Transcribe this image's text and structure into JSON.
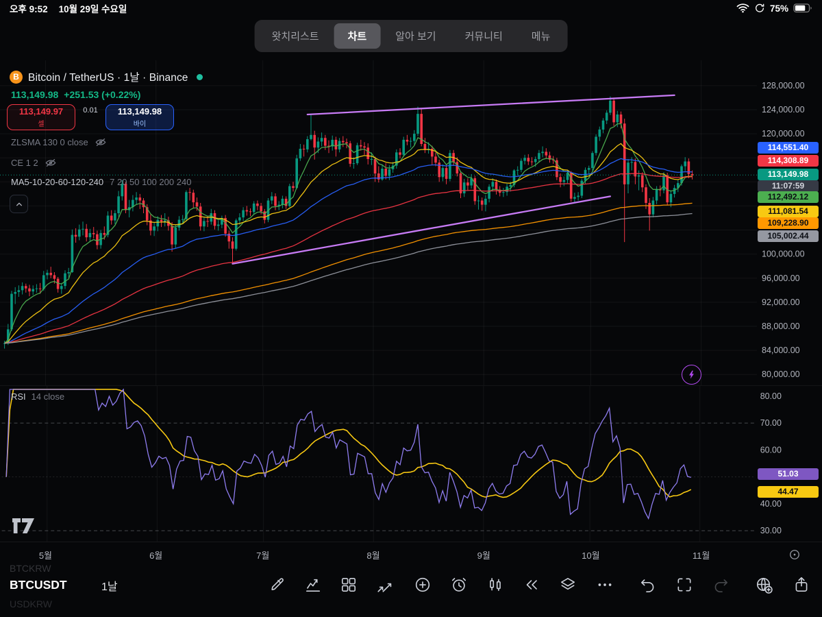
{
  "status": {
    "time": "오후 9:52",
    "date": "10월 29일 수요일",
    "battery": "75%"
  },
  "tabs": {
    "items": [
      {
        "key": "watchlist",
        "label": "왓치리스트",
        "active": false
      },
      {
        "key": "chart",
        "label": "차트",
        "active": true
      },
      {
        "key": "discover",
        "label": "알아 보기",
        "active": false
      },
      {
        "key": "community",
        "label": "커뮤니티",
        "active": false
      },
      {
        "key": "menu",
        "label": "메뉴",
        "active": false
      }
    ]
  },
  "header": {
    "symbol_icon_glyph": "B",
    "title_full": "Bitcoin / TetherUS · 1날 · Binance",
    "price": "113,149.98",
    "change": "+251.53 (+0.22%)",
    "sell": {
      "price": "113,149.97",
      "label": "셀"
    },
    "spread": "0.01",
    "buy": {
      "price": "113,149.98",
      "label": "바이"
    }
  },
  "indicators": {
    "zlsma": "ZLSMA 130 0 close",
    "ce": "CE 1 2",
    "ma_name": "MA5-10-20-60-120-240",
    "ma_params": "7 20 50 100 200 240",
    "rsi_name": "RSI",
    "rsi_params": "14 close"
  },
  "price_axis": {
    "ticks": [
      128000,
      124000,
      120000,
      100000,
      96000,
      92000,
      88000,
      84000,
      80000
    ],
    "badges": [
      {
        "text": "114,551.40",
        "bg": "#2962ff",
        "fg": "#ffffff"
      },
      {
        "text": "114,308.89",
        "bg": "#f23645",
        "fg": "#ffffff"
      },
      {
        "text": "113,149.98",
        "bg": "#089981",
        "fg": "#ffffff",
        "countdown": "11:07:59"
      },
      {
        "text": "112,492.12",
        "bg": "#4caf50",
        "fg": "#0b0e14"
      },
      {
        "text": "111,081.54",
        "bg": "#f8c912",
        "fg": "#0b0e14"
      },
      {
        "text": "109,228.90",
        "bg": "#ff9800",
        "fg": "#0b0e14"
      },
      {
        "text": "105,002.44",
        "bg": "#9598a1",
        "fg": "#0b0e14"
      }
    ]
  },
  "rsi_axis": {
    "ticks": [
      80,
      70,
      60,
      40,
      30
    ],
    "badges": [
      {
        "text": "51.03",
        "bg": "#7e57c2",
        "fg": "#ffffff"
      },
      {
        "text": "44.47",
        "bg": "#f8c912",
        "fg": "#0b0e14"
      }
    ]
  },
  "bottom": {
    "symbol_prev": "BTCKRW",
    "symbol": "BTCUSDT",
    "symbol_next": "USDKRW",
    "interval": "1날"
  },
  "toolbar": {
    "icons": [
      {
        "name": "draw"
      },
      {
        "name": "indicators"
      },
      {
        "name": "layouts"
      },
      {
        "name": "trendlines"
      },
      {
        "name": "add"
      },
      {
        "name": "alerts"
      },
      {
        "name": "chart-type"
      },
      {
        "name": "bar-replay"
      },
      {
        "name": "object-tree"
      },
      {
        "name": "more"
      },
      {
        "name": "undo"
      },
      {
        "name": "fullscreen"
      },
      {
        "name": "redo",
        "disabled": true
      },
      {
        "name": "publish"
      },
      {
        "name": "share"
      }
    ]
  },
  "chart_data": {
    "type": "candlestick",
    "symbol": "BTCUSDT",
    "exchange": "Binance",
    "interval": "1날",
    "last_price": 113149.98,
    "change_text": "+251.53 (+0.22%)",
    "values_unit": "thousand USDT",
    "y_axis": {
      "min": 80000,
      "max": 128000,
      "step": 4000
    },
    "months": [
      {
        "label": "5월",
        "idx": 12
      },
      {
        "label": "6월",
        "idx": 43
      },
      {
        "label": "7월",
        "idx": 73
      },
      {
        "label": "8월",
        "idx": 104
      },
      {
        "label": "9월",
        "idx": 135
      },
      {
        "label": "10월",
        "idx": 165
      },
      {
        "label": "11월",
        "idx": 196
      }
    ],
    "colors": {
      "up": "#089981",
      "down": "#f23645",
      "drawing": "#c77bf5",
      "accent": "#b14aef"
    },
    "ma": [
      {
        "period": 7,
        "color": "#4caf50"
      },
      {
        "period": 20,
        "color": "#f8c912"
      },
      {
        "period": 50,
        "color": "#2962ff"
      },
      {
        "period": 100,
        "color": "#f23645"
      },
      {
        "period": 200,
        "color": "#ff9800"
      },
      {
        "period": 240,
        "color": "#9598a1"
      }
    ],
    "drawings": [
      {
        "i1": 85,
        "p1": 123.2,
        "i2": 188,
        "p2": 126.4
      },
      {
        "i1": 64,
        "p1": 98.4,
        "i2": 170,
        "p2": 109.6
      }
    ],
    "rsi": {
      "period": 14,
      "source": "close",
      "value": 51.03,
      "ma_value": 44.47,
      "bands": [
        70,
        30
      ],
      "color": "#8f7df0",
      "ma_color": "#f8c912"
    },
    "candles": [
      [
        85.1,
        85.6,
        84.3,
        85.2
      ],
      [
        85.2,
        88.4,
        84.9,
        87.5
      ],
      [
        87.5,
        93.9,
        87.2,
        93.4
      ],
      [
        93.4,
        94.5,
        91.7,
        93.7
      ],
      [
        93.7,
        94.8,
        92.9,
        94.0
      ],
      [
        94.0,
        95.3,
        93.3,
        94.7
      ],
      [
        94.7,
        95.1,
        93.6,
        94.3
      ],
      [
        94.3,
        94.9,
        93.0,
        93.8
      ],
      [
        93.8,
        94.8,
        93.2,
        94.2
      ],
      [
        94.2,
        95.0,
        93.6,
        94.3
      ],
      [
        94.3,
        95.2,
        93.4,
        94.2
      ],
      [
        94.2,
        97.2,
        93.9,
        96.5
      ],
      [
        96.5,
        97.4,
        95.8,
        96.9
      ],
      [
        96.9,
        97.9,
        96.0,
        96.5
      ],
      [
        96.5,
        97.0,
        95.1,
        95.9
      ],
      [
        95.9,
        96.2,
        93.6,
        94.2
      ],
      [
        94.2,
        95.2,
        93.4,
        94.7
      ],
      [
        94.7,
        97.3,
        94.2,
        96.8
      ],
      [
        96.8,
        97.7,
        96.1,
        97.0
      ],
      [
        97.0,
        104.1,
        96.9,
        103.2
      ],
      [
        103.2,
        104.3,
        101.9,
        102.9
      ],
      [
        102.9,
        104.9,
        102.3,
        104.1
      ],
      [
        104.1,
        105.4,
        103.1,
        104.2
      ],
      [
        104.2,
        105.0,
        102.1,
        102.8
      ],
      [
        102.8,
        104.2,
        102.0,
        103.5
      ],
      [
        103.5,
        104.5,
        102.6,
        103.3
      ],
      [
        103.3,
        103.9,
        100.8,
        101.5
      ],
      [
        101.5,
        104.0,
        100.9,
        103.5
      ],
      [
        103.5,
        104.6,
        102.4,
        103.2
      ],
      [
        103.2,
        107.1,
        102.8,
        106.4
      ],
      [
        106.4,
        107.3,
        104.9,
        105.6
      ],
      [
        105.6,
        107.3,
        105.0,
        106.8
      ],
      [
        106.8,
        110.5,
        106.2,
        109.6
      ],
      [
        109.6,
        112.3,
        108.9,
        111.7
      ],
      [
        111.7,
        112.0,
        106.8,
        107.3
      ],
      [
        107.3,
        109.0,
        106.1,
        107.8
      ],
      [
        107.8,
        109.8,
        107.1,
        109.0
      ],
      [
        109.0,
        110.3,
        108.2,
        109.4
      ],
      [
        109.4,
        110.0,
        107.5,
        108.9
      ],
      [
        108.9,
        109.3,
        106.8,
        107.8
      ],
      [
        107.8,
        108.3,
        104.8,
        105.6
      ],
      [
        105.6,
        106.6,
        103.1,
        103.9
      ],
      [
        103.9,
        105.2,
        103.0,
        104.6
      ],
      [
        104.6,
        106.3,
        103.8,
        105.7
      ],
      [
        105.7,
        106.5,
        104.5,
        105.4
      ],
      [
        105.4,
        106.8,
        104.6,
        105.6
      ],
      [
        105.6,
        106.2,
        103.9,
        104.7
      ],
      [
        104.7,
        105.3,
        100.4,
        101.6
      ],
      [
        101.6,
        104.9,
        101.0,
        104.4
      ],
      [
        104.4,
        106.3,
        103.9,
        105.7
      ],
      [
        105.7,
        106.5,
        105.0,
        105.8
      ],
      [
        105.8,
        110.6,
        105.4,
        110.3
      ],
      [
        110.3,
        111.0,
        108.9,
        110.2
      ],
      [
        110.2,
        110.7,
        107.6,
        108.6
      ],
      [
        108.6,
        109.4,
        107.2,
        107.9
      ],
      [
        107.9,
        108.5,
        103.9,
        104.6
      ],
      [
        104.6,
        106.1,
        103.8,
        105.5
      ],
      [
        105.5,
        106.4,
        104.5,
        105.4
      ],
      [
        105.4,
        107.5,
        104.9,
        106.8
      ],
      [
        106.8,
        107.3,
        104.1,
        104.7
      ],
      [
        104.7,
        105.6,
        103.9,
        104.9
      ],
      [
        104.9,
        106.4,
        104.3,
        106.0
      ],
      [
        106.0,
        106.5,
        102.9,
        103.4
      ],
      [
        103.4,
        103.9,
        100.9,
        102.1
      ],
      [
        102.1,
        102.8,
        98.3,
        100.9
      ],
      [
        100.9,
        105.9,
        100.6,
        105.6
      ],
      [
        105.6,
        106.8,
        104.9,
        106.1
      ],
      [
        106.1,
        107.8,
        105.5,
        107.3
      ],
      [
        107.3,
        108.0,
        106.4,
        107.1
      ],
      [
        107.1,
        107.6,
        106.3,
        107.0
      ],
      [
        107.0,
        108.8,
        106.6,
        108.4
      ],
      [
        108.4,
        108.9,
        107.3,
        108.0
      ],
      [
        108.0,
        108.5,
        106.6,
        107.1
      ],
      [
        107.1,
        107.5,
        105.1,
        105.7
      ],
      [
        105.7,
        109.3,
        105.3,
        108.9
      ],
      [
        108.9,
        110.3,
        108.3,
        109.6
      ],
      [
        109.6,
        110.1,
        107.3,
        108.0
      ],
      [
        108.0,
        108.8,
        107.3,
        108.2
      ],
      [
        108.2,
        109.7,
        107.6,
        109.2
      ],
      [
        109.2,
        109.6,
        107.5,
        108.0
      ],
      [
        108.0,
        111.7,
        107.8,
        111.3
      ],
      [
        111.3,
        112.0,
        110.4,
        111.0
      ],
      [
        111.0,
        116.5,
        110.8,
        115.9
      ],
      [
        115.9,
        118.3,
        115.5,
        117.5
      ],
      [
        117.5,
        118.2,
        116.2,
        117.4
      ],
      [
        117.4,
        119.6,
        116.9,
        119.1
      ],
      [
        119.1,
        123.2,
        118.9,
        119.8
      ],
      [
        119.8,
        120.5,
        115.7,
        117.7
      ],
      [
        117.7,
        119.4,
        116.8,
        118.7
      ],
      [
        118.7,
        120.2,
        117.9,
        119.3
      ],
      [
        119.3,
        119.8,
        117.3,
        118.0
      ],
      [
        118.0,
        118.9,
        116.8,
        117.9
      ],
      [
        117.9,
        119.7,
        117.2,
        119.0
      ],
      [
        119.0,
        119.5,
        116.2,
        117.4
      ],
      [
        117.4,
        119.3,
        116.9,
        118.8
      ],
      [
        118.8,
        119.6,
        117.8,
        118.6
      ],
      [
        118.6,
        119.2,
        117.6,
        118.4
      ],
      [
        118.4,
        118.8,
        114.5,
        115.0
      ],
      [
        115.0,
        116.1,
        114.2,
        115.1
      ],
      [
        115.1,
        118.5,
        114.8,
        118.1
      ],
      [
        118.1,
        119.0,
        117.2,
        117.9
      ],
      [
        117.9,
        118.6,
        116.5,
        117.7
      ],
      [
        117.7,
        118.4,
        114.9,
        115.8
      ],
      [
        115.8,
        116.9,
        114.8,
        115.8
      ],
      [
        115.8,
        116.2,
        112.0,
        113.4
      ],
      [
        113.4,
        114.6,
        111.9,
        112.4
      ],
      [
        112.4,
        114.9,
        112.2,
        114.2
      ],
      [
        114.2,
        115.1,
        112.4,
        113.0
      ],
      [
        113.0,
        114.8,
        112.3,
        114.1
      ],
      [
        114.1,
        115.3,
        113.5,
        114.7
      ],
      [
        114.7,
        117.4,
        114.2,
        116.9
      ],
      [
        116.9,
        117.6,
        115.9,
        116.5
      ],
      [
        116.5,
        119.5,
        116.2,
        119.0
      ],
      [
        119.0,
        119.8,
        118.1,
        118.7
      ],
      [
        118.7,
        119.4,
        117.7,
        118.8
      ],
      [
        118.8,
        120.6,
        118.2,
        120.0
      ],
      [
        120.0,
        124.5,
        119.6,
        123.3
      ],
      [
        123.3,
        124.2,
        117.9,
        118.3
      ],
      [
        118.3,
        119.3,
        116.8,
        117.4
      ],
      [
        117.4,
        118.6,
        116.7,
        117.5
      ],
      [
        117.5,
        118.0,
        114.8,
        116.2
      ],
      [
        116.2,
        116.9,
        114.6,
        115.2
      ],
      [
        115.2,
        115.7,
        112.0,
        112.8
      ],
      [
        112.8,
        114.9,
        112.1,
        114.3
      ],
      [
        114.3,
        114.8,
        111.6,
        112.5
      ],
      [
        112.5,
        117.3,
        112.1,
        116.8
      ],
      [
        116.8,
        117.3,
        114.7,
        115.3
      ],
      [
        115.3,
        116.1,
        112.9,
        113.4
      ],
      [
        113.4,
        113.8,
        109.3,
        110.1
      ],
      [
        110.1,
        112.5,
        109.5,
        111.9
      ],
      [
        111.9,
        112.6,
        110.6,
        111.4
      ],
      [
        111.4,
        113.3,
        110.9,
        112.6
      ],
      [
        112.6,
        113.0,
        108.2,
        108.8
      ],
      [
        108.8,
        109.7,
        107.4,
        108.9
      ],
      [
        108.9,
        109.4,
        107.2,
        108.2
      ],
      [
        108.2,
        109.8,
        107.1,
        109.2
      ],
      [
        109.2,
        111.6,
        108.6,
        111.2
      ],
      [
        111.2,
        112.6,
        110.4,
        112.0
      ],
      [
        112.0,
        112.4,
        109.9,
        110.7
      ],
      [
        110.7,
        111.3,
        109.6,
        110.2
      ],
      [
        110.2,
        111.0,
        109.5,
        110.3
      ],
      [
        110.3,
        111.7,
        109.7,
        111.2
      ],
      [
        111.2,
        112.0,
        110.4,
        111.5
      ],
      [
        111.5,
        114.1,
        111.1,
        113.9
      ],
      [
        113.9,
        114.6,
        113.1,
        114.0
      ],
      [
        114.0,
        115.9,
        113.6,
        115.5
      ],
      [
        115.5,
        116.5,
        114.9,
        116.0
      ],
      [
        116.0,
        116.6,
        114.8,
        115.4
      ],
      [
        115.4,
        116.1,
        114.7,
        115.3
      ],
      [
        115.3,
        116.2,
        114.5,
        115.8
      ],
      [
        115.8,
        117.3,
        115.2,
        116.8
      ],
      [
        116.8,
        117.9,
        116.1,
        117.0
      ],
      [
        117.0,
        117.6,
        115.9,
        116.4
      ],
      [
        116.4,
        117.0,
        115.2,
        115.7
      ],
      [
        115.7,
        116.3,
        115.0,
        115.6
      ],
      [
        115.6,
        116.0,
        112.3,
        112.8
      ],
      [
        112.8,
        113.4,
        111.1,
        112.0
      ],
      [
        112.0,
        112.9,
        111.3,
        112.3
      ],
      [
        112.3,
        113.9,
        111.8,
        113.5
      ],
      [
        113.5,
        113.8,
        108.7,
        109.2
      ],
      [
        109.2,
        110.2,
        108.6,
        109.5
      ],
      [
        109.5,
        110.3,
        108.9,
        109.7
      ],
      [
        109.7,
        112.5,
        109.3,
        112.2
      ],
      [
        112.2,
        114.4,
        111.7,
        114.0
      ],
      [
        114.0,
        114.7,
        113.2,
        114.3
      ],
      [
        114.3,
        117.1,
        113.9,
        116.8
      ],
      [
        116.8,
        119.9,
        116.4,
        119.5
      ],
      [
        119.5,
        121.2,
        118.8,
        120.7
      ],
      [
        120.7,
        122.6,
        120.1,
        122.2
      ],
      [
        122.2,
        123.9,
        121.6,
        123.5
      ],
      [
        123.5,
        126.2,
        123.1,
        125.5
      ],
      [
        125.5,
        126.0,
        121.3,
        121.9
      ],
      [
        121.9,
        123.8,
        121.1,
        123.2
      ],
      [
        123.2,
        123.7,
        120.9,
        121.7
      ],
      [
        121.7,
        122.5,
        102.0,
        111.6
      ],
      [
        111.6,
        115.8,
        110.1,
        115.2
      ],
      [
        115.2,
        116.1,
        113.9,
        115.3
      ],
      [
        115.3,
        115.9,
        111.6,
        112.9
      ],
      [
        112.9,
        113.9,
        110.6,
        113.1
      ],
      [
        113.1,
        113.6,
        110.3,
        111.1
      ],
      [
        111.1,
        111.6,
        107.5,
        108.5
      ],
      [
        108.5,
        109.3,
        103.9,
        106.6
      ],
      [
        106.6,
        109.5,
        106.1,
        108.9
      ],
      [
        108.9,
        111.3,
        108.3,
        110.8
      ],
      [
        110.8,
        111.4,
        109.6,
        110.6
      ],
      [
        110.6,
        113.6,
        110.1,
        113.1
      ],
      [
        113.1,
        113.5,
        108.1,
        108.6
      ],
      [
        108.6,
        110.6,
        107.8,
        110.0
      ],
      [
        110.0,
        111.5,
        109.4,
        111.0
      ],
      [
        111.0,
        112.3,
        110.3,
        111.8
      ],
      [
        111.8,
        114.9,
        111.4,
        114.6
      ],
      [
        114.6,
        116.1,
        113.8,
        115.4
      ],
      [
        115.4,
        115.9,
        112.6,
        113.3
      ],
      [
        113.3,
        113.9,
        112.4,
        113.1
      ]
    ]
  }
}
